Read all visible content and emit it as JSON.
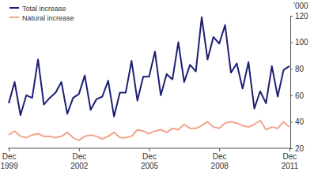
{
  "chart_data": {
    "type": "line",
    "y_label": "'000",
    "categories": [
      "Dec 1999",
      null,
      null,
      null,
      null,
      null,
      null,
      null,
      null,
      null,
      null,
      null,
      "Dec 2002",
      null,
      null,
      null,
      null,
      null,
      null,
      null,
      null,
      null,
      null,
      null,
      "Dec 2005",
      null,
      null,
      null,
      null,
      null,
      null,
      null,
      null,
      null,
      null,
      null,
      "Dec 2008",
      null,
      null,
      null,
      null,
      null,
      null,
      null,
      null,
      null,
      null,
      null,
      "Dec 2011"
    ],
    "series": [
      {
        "name": "Total increase",
        "color": "#1c1f72",
        "values": [
          54,
          70,
          45,
          60,
          58,
          87,
          53,
          58,
          62,
          70,
          46,
          58,
          61,
          75,
          49,
          57,
          59,
          71,
          44,
          62,
          62,
          86,
          56,
          74,
          74,
          93,
          60,
          76,
          72,
          100,
          70,
          83,
          78,
          119,
          87,
          104,
          99,
          113,
          77,
          84,
          65,
          85,
          50,
          63,
          54,
          82,
          59,
          79,
          82
        ]
      },
      {
        "name": "Natural increase",
        "color": "#f0a58a",
        "values": [
          30,
          33,
          29,
          28,
          30,
          31,
          29,
          29,
          28,
          29,
          32,
          28,
          26,
          29,
          30,
          29,
          27,
          29,
          32,
          28,
          28,
          29,
          34,
          33,
          31,
          33,
          34,
          32,
          35,
          34,
          38,
          35,
          35,
          37,
          40,
          36,
          35,
          39,
          40,
          39,
          37,
          36,
          38,
          41,
          34,
          36,
          35,
          40,
          36
        ]
      }
    ],
    "ylim": [
      20,
      120
    ],
    "yticks": [
      20,
      40,
      60,
      80,
      100,
      120
    ],
    "legend": "upper left",
    "grid": false
  }
}
